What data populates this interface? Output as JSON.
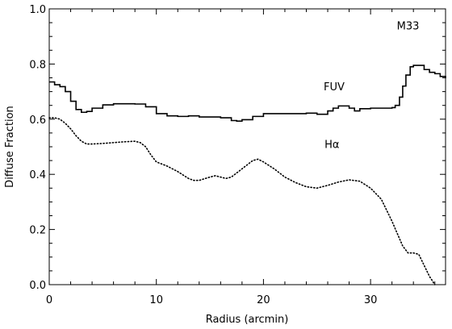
{
  "chart_data": {
    "type": "line",
    "title": "",
    "xlabel": "Radius (arcmin)",
    "ylabel": "Diffuse Fraction",
    "xlim": [
      0,
      37
    ],
    "ylim": [
      0.0,
      1.0
    ],
    "x_ticks": [
      0,
      10,
      20,
      30
    ],
    "x_tick_labels": [
      "0",
      "10",
      "20",
      "30"
    ],
    "y_ticks": [
      0.0,
      0.2,
      0.4,
      0.6,
      0.8,
      1.0
    ],
    "y_tick_labels": [
      "0.0",
      "0.2",
      "0.4",
      "0.6",
      "0.8",
      "1.0"
    ],
    "grid": false,
    "annotations": [
      {
        "text": "M33",
        "x": 33.5,
        "y": 0.925
      },
      {
        "text": "FUV",
        "x": 26.6,
        "y": 0.705
      },
      {
        "text": "Hα",
        "x": 26.4,
        "y": 0.495
      }
    ],
    "series": [
      {
        "name": "FUV",
        "style": "solid-step",
        "x": [
          0,
          0.5,
          1,
          1.5,
          2,
          2.5,
          3,
          3.5,
          4,
          5,
          6,
          7,
          8,
          9,
          10,
          11,
          12,
          13,
          14,
          15,
          16,
          17,
          17.5,
          18,
          19,
          20,
          21,
          22,
          23,
          24,
          25,
          26,
          26.5,
          27,
          28,
          28.5,
          29,
          30,
          31,
          32,
          32.3,
          32.7,
          33,
          33.3,
          33.7,
          34,
          34.5,
          35,
          35.5,
          36,
          36.5,
          37
        ],
        "y": [
          0.735,
          0.725,
          0.718,
          0.7,
          0.665,
          0.635,
          0.625,
          0.628,
          0.64,
          0.652,
          0.656,
          0.656,
          0.655,
          0.645,
          0.62,
          0.612,
          0.61,
          0.612,
          0.608,
          0.608,
          0.605,
          0.595,
          0.593,
          0.598,
          0.61,
          0.62,
          0.62,
          0.62,
          0.62,
          0.622,
          0.618,
          0.63,
          0.64,
          0.648,
          0.64,
          0.63,
          0.638,
          0.64,
          0.64,
          0.642,
          0.65,
          0.68,
          0.72,
          0.76,
          0.79,
          0.795,
          0.795,
          0.78,
          0.77,
          0.765,
          0.755,
          0.748
        ]
      },
      {
        "name": "Hα",
        "style": "dotted",
        "x": [
          0,
          0.5,
          1,
          1.5,
          2,
          2.5,
          3,
          3.5,
          4,
          5,
          6,
          7,
          8,
          8.5,
          9,
          9.5,
          10,
          11,
          12,
          13,
          13.5,
          14,
          15,
          15.5,
          16,
          16.5,
          17,
          18,
          19,
          19.5,
          20,
          21,
          22,
          23,
          24,
          25,
          26,
          27,
          28,
          29,
          30,
          31,
          32,
          33,
          33.5,
          34,
          34.5,
          35,
          35.5,
          36
        ],
        "y": [
          0.605,
          0.605,
          0.6,
          0.585,
          0.565,
          0.54,
          0.52,
          0.51,
          0.51,
          0.512,
          0.515,
          0.518,
          0.52,
          0.515,
          0.5,
          0.47,
          0.445,
          0.43,
          0.41,
          0.385,
          0.378,
          0.378,
          0.39,
          0.395,
          0.39,
          0.385,
          0.39,
          0.42,
          0.45,
          0.455,
          0.445,
          0.42,
          0.39,
          0.37,
          0.355,
          0.35,
          0.36,
          0.372,
          0.38,
          0.375,
          0.35,
          0.31,
          0.23,
          0.14,
          0.115,
          0.115,
          0.11,
          0.07,
          0.03,
          0.0
        ]
      }
    ]
  }
}
